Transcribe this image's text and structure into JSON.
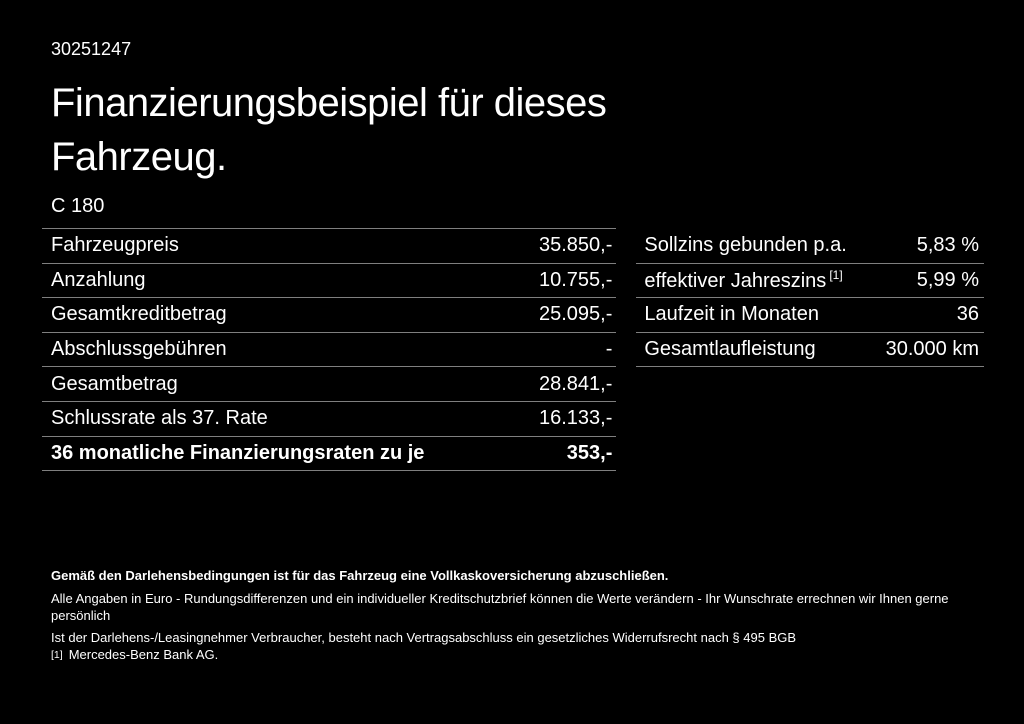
{
  "page": {
    "background_color": "#000000",
    "text_color": "#ffffff",
    "divider_color": "#7f7f7f"
  },
  "header": {
    "reference_number": "30251247",
    "title_line1": "Finanzierungsbeispiel für dieses",
    "title_line2": "Fahrzeug.",
    "model": "C 180"
  },
  "financing_table": {
    "rows": [
      {
        "label": "Fahrzeugpreis",
        "value": "35.850,-"
      },
      {
        "label": "Anzahlung",
        "value": "10.755,-"
      },
      {
        "label": "Gesamtkreditbetrag",
        "value": "25.095,-"
      },
      {
        "label": "Abschlussgebühren",
        "value": "-"
      },
      {
        "label": "Gesamtbetrag",
        "value": "28.841,-"
      },
      {
        "label": "Schlussrate als 37. Rate",
        "value": "16.133,-"
      },
      {
        "label": "36 monatliche Finanzierungsraten zu je",
        "value": "353,-"
      }
    ]
  },
  "conditions_table": {
    "rows": [
      {
        "label": "Sollzins gebunden p.a.",
        "sup": "",
        "value": "5,83 %"
      },
      {
        "label": "effektiver Jahreszins",
        "sup": "[1]",
        "value": "5,99 %"
      },
      {
        "label": "Laufzeit in Monaten",
        "sup": "",
        "value": "36"
      },
      {
        "label": "Gesamtlaufleistung",
        "sup": "",
        "value": "30.000 km"
      }
    ]
  },
  "footer": {
    "insurance_note": "Gemäß den Darlehensbedingungen ist für das Fahrzeug eine Vollkaskoversicherung abzuschließen.",
    "disclaimer_line1": "Alle Angaben in Euro - Rundungsdifferenzen und ein individueller Kreditschutzbrief können die Werte verändern - Ihr Wunschrate errechnen wir Ihnen gerne persönlich",
    "disclaimer_line2": "Ist der Darlehens-/Leasingnehmer Verbraucher, besteht nach Vertragsabschluss ein gesetzliches Widerrufsrecht nach § 495 BGB",
    "footnote_marker": "[1]",
    "footnote_text": "Mercedes-Benz Bank AG."
  }
}
